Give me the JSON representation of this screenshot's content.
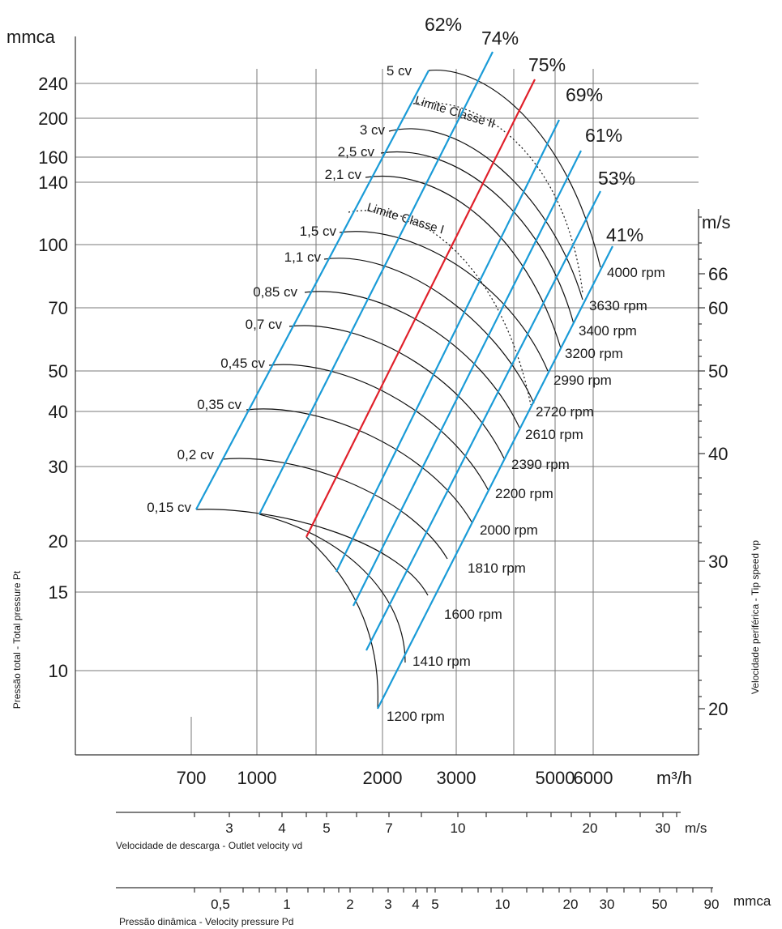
{
  "chart_data": {
    "type": "line",
    "ylabel": "Pressão total - Total pressure Pt",
    "y2label": "Velocidade periférica - Tip speed vp",
    "y_unit": "mmca",
    "y2_unit": "m/s",
    "x_unit": "m³/h",
    "y_scale": "log",
    "x_scale": "log",
    "yticks": [
      "240",
      "200",
      "160",
      "140",
      "100",
      "70",
      "50",
      "40",
      "30",
      "20",
      "15",
      "10"
    ],
    "y2ticks": [
      "66",
      "60",
      "50",
      "40",
      "30",
      "20"
    ],
    "xticks": [
      "700",
      "1000",
      "2000",
      "3000",
      "5000",
      "6000"
    ],
    "outlet_velocity_axis": {
      "label": "Velocidade de descarga - Outlet velocity vd",
      "unit": "m/s",
      "ticks": [
        "3",
        "4",
        "5",
        "7",
        "10",
        "20",
        "30"
      ]
    },
    "velocity_pressure_axis": {
      "label": "Pressão dinâmica - Velocity pressure Pd",
      "unit": "mmca",
      "ticks": [
        "0,5",
        "1",
        "2",
        "3",
        "4",
        "5",
        "10",
        "20",
        "30",
        "50",
        "90"
      ]
    },
    "power_labels": [
      "5 cv",
      "3 cv",
      "2,5 cv",
      "2,1 cv",
      "1,5 cv",
      "1,1 cv",
      "0,85 cv",
      "0,7 cv",
      "0,45 cv",
      "0,35 cv",
      "0,2 cv",
      "0,15 cv"
    ],
    "speed_labels": [
      "4000 rpm",
      "3630 rpm",
      "3400 rpm",
      "3200 rpm",
      "2990 rpm",
      "2720 rpm",
      "2610 rpm",
      "2390 rpm",
      "2200 rpm",
      "2000 rpm",
      "1810 rpm",
      "1600 rpm",
      "1410 rpm",
      "1200 rpm"
    ],
    "efficiency_labels": [
      "62%",
      "74%",
      "75%",
      "69%",
      "61%",
      "53%",
      "41%"
    ],
    "limit_labels": [
      "Limite Classe II",
      "Limite Classe I"
    ],
    "colors": {
      "efficiency_line": "#1a9bd7",
      "best_efficiency_line": "#e0202a",
      "curves": "#111111"
    }
  }
}
